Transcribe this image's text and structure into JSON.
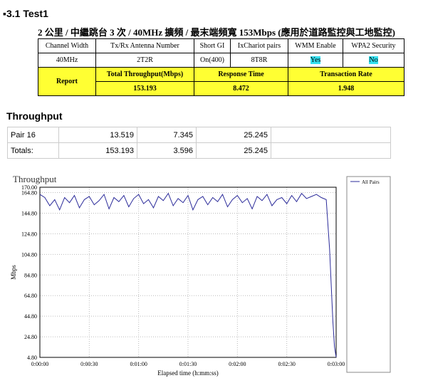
{
  "heading": "3.1 Test1",
  "subtitle": "2 公里 / 中繼跳台 3 次 / 40MHz 擴頻 / 最末端頻寬 153Mbps (應用於道路監控與工地監控)",
  "table": {
    "header_row": [
      "Channel Width",
      "Tx/Rx Antenna Number",
      "Short GI",
      "IxChariot pairs",
      "WMM Enable",
      "WPA2 Security"
    ],
    "value_row": [
      "40MHz",
      "2T2R",
      "On(400)",
      "8T8R",
      "Yes",
      "No"
    ],
    "report": {
      "label": "Report",
      "headers": [
        "Total Throughput(Mbps)",
        "Response Time",
        "Transaction Rate"
      ],
      "values": [
        "153.193",
        "8.472",
        "1.948"
      ]
    }
  },
  "section_title": "Throughput",
  "summary": {
    "rows": [
      [
        "Pair 16",
        "13.519",
        "7.345",
        "25.245"
      ],
      [
        "Totals:",
        "153.193",
        "3.596",
        "25.245"
      ]
    ]
  },
  "chart_data": {
    "type": "line",
    "title": "Throughput",
    "y_label": "Mbps",
    "x_label": "Elapsed time (h:mm:ss)",
    "x": [
      0,
      3,
      6,
      9,
      12,
      15,
      18,
      21,
      24,
      27,
      30,
      33,
      36,
      39,
      42,
      45,
      48,
      51,
      54,
      57,
      60,
      63,
      66,
      69,
      72,
      75,
      78,
      81,
      84,
      87,
      90,
      93,
      96,
      99,
      102,
      105,
      108,
      111,
      114,
      117,
      120,
      123,
      126,
      129,
      132,
      135,
      138,
      141,
      144,
      147,
      150,
      153,
      156,
      159,
      162,
      165,
      168,
      171,
      174,
      176,
      178,
      179,
      180
    ],
    "series": [
      {
        "name": "All Pairs",
        "color": "#2b2b9a",
        "values": [
          163,
          160,
          152,
          158,
          148,
          160,
          155,
          162,
          150,
          158,
          161,
          153,
          157,
          163,
          149,
          160,
          156,
          162,
          151,
          159,
          163,
          154,
          158,
          150,
          161,
          157,
          164,
          152,
          159,
          155,
          162,
          148,
          158,
          161,
          153,
          160,
          156,
          163,
          151,
          158,
          162,
          155,
          159,
          149,
          161,
          157,
          163,
          152,
          158,
          160,
          154,
          162,
          156,
          164,
          159,
          161,
          163,
          160,
          158,
          110,
          40,
          15,
          5
        ]
      }
    ],
    "xlim": [
      0,
      180
    ],
    "ylim": [
      4.8,
      170
    ],
    "xticks": [
      {
        "value": 0,
        "label": "0:00:00"
      },
      {
        "value": 30,
        "label": "0:00:30"
      },
      {
        "value": 60,
        "label": "0:01:00"
      },
      {
        "value": 90,
        "label": "0:01:30"
      },
      {
        "value": 120,
        "label": "0:02:00"
      },
      {
        "value": 150,
        "label": "0:02:30"
      },
      {
        "value": 180,
        "label": "0:03:00"
      }
    ],
    "yticks": [
      {
        "value": 4.8,
        "label": "4.80"
      },
      {
        "value": 24.8,
        "label": "24.80"
      },
      {
        "value": 44.8,
        "label": "44.80"
      },
      {
        "value": 64.8,
        "label": "64.80"
      },
      {
        "value": 84.8,
        "label": "84.80"
      },
      {
        "value": 104.8,
        "label": "104.80"
      },
      {
        "value": 124.8,
        "label": "124.80"
      },
      {
        "value": 144.8,
        "label": "144.80"
      },
      {
        "value": 164.8,
        "label": "164.80"
      },
      {
        "value": 170,
        "label": "170.00"
      }
    ],
    "grid": true
  }
}
